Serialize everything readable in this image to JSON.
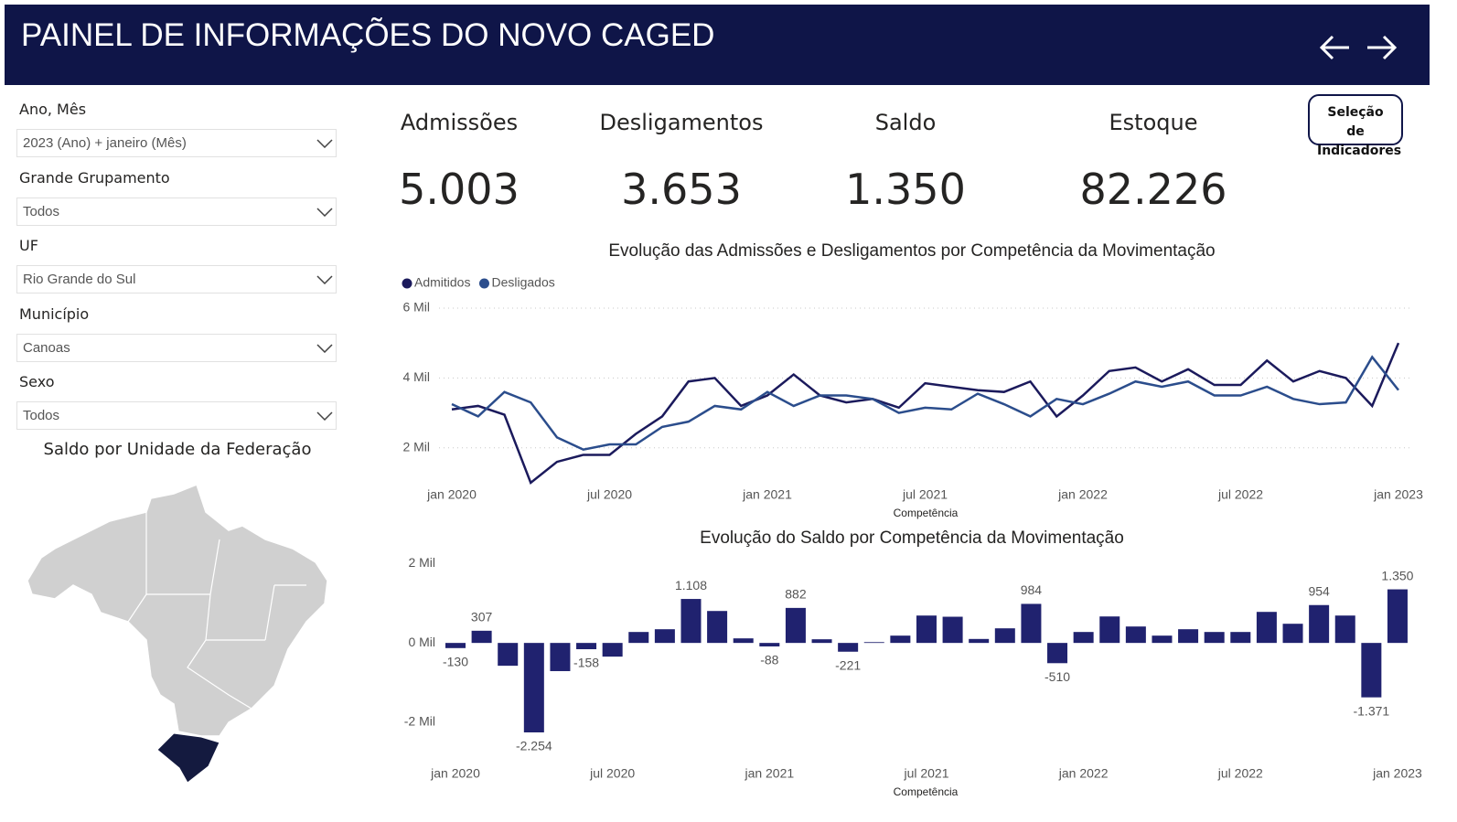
{
  "header": {
    "title": "PAINEL DE INFORMAÇÕES DO NOVO CAGED"
  },
  "filters": [
    {
      "label": "Ano, Mês",
      "value": "2023 (Ano) + janeiro (Mês)"
    },
    {
      "label": "Grande Grupamento",
      "value": "Todos"
    },
    {
      "label": "UF",
      "value": "Rio Grande do Sul"
    },
    {
      "label": "Município",
      "value": "Canoas"
    },
    {
      "label": "Sexo",
      "value": "Todos"
    }
  ],
  "button": "Seleção de Indicadores",
  "kpis": [
    {
      "label": "Admissões",
      "value": "5.003"
    },
    {
      "label": "Desligamentos",
      "value": "3.653"
    },
    {
      "label": "Saldo",
      "value": "1.350"
    },
    {
      "label": "Estoque",
      "value": "82.226"
    }
  ],
  "map": {
    "title": "Saldo por Unidade da Federação"
  },
  "chart_data": [
    {
      "type": "line",
      "title": "Evolução das Admissões e Desligamentos por Competência da Movimentação",
      "x_label": "Competência",
      "categories": [
        "jan 2020",
        null,
        null,
        null,
        null,
        null,
        "jul 2020",
        null,
        null,
        null,
        null,
        null,
        "jan 2021",
        null,
        null,
        null,
        null,
        null,
        "jul 2021",
        null,
        null,
        null,
        null,
        null,
        "jan 2022",
        null,
        null,
        null,
        null,
        null,
        "jul 2022",
        null,
        null,
        null,
        null,
        null,
        "jan 2023"
      ],
      "series": [
        {
          "name": "Admitidos",
          "color": "#1b1a5c",
          "values": [
            3100,
            3200,
            2950,
            1000,
            1600,
            1800,
            1800,
            2400,
            2900,
            3900,
            4000,
            3200,
            3500,
            4100,
            3500,
            3300,
            3400,
            3150,
            3850,
            3750,
            3650,
            3600,
            3900,
            2900,
            3500,
            4200,
            4300,
            3900,
            4250,
            3800,
            3800,
            4500,
            3900,
            4200,
            4000,
            3200,
            5003
          ]
        },
        {
          "name": "Desligados",
          "color": "#2b4d8c",
          "values": [
            3250,
            2900,
            3600,
            3300,
            2300,
            1950,
            2100,
            2100,
            2600,
            2750,
            3200,
            3100,
            3600,
            3200,
            3500,
            3500,
            3400,
            3000,
            3150,
            3100,
            3550,
            3250,
            2900,
            3400,
            3250,
            3550,
            3900,
            3750,
            3900,
            3500,
            3500,
            3750,
            3400,
            3250,
            3300,
            4600,
            3653
          ]
        }
      ],
      "ylim": [
        1000,
        6000
      ],
      "yticks": [
        {
          "value": 2000,
          "label": "2 Mil"
        },
        {
          "value": 4000,
          "label": "4 Mil"
        },
        {
          "value": 6000,
          "label": "6 Mil"
        }
      ],
      "grid": true,
      "legend": "top-left"
    },
    {
      "type": "bar",
      "title": "Evolução do Saldo por Competência da Movimentação",
      "x_label": "Competência",
      "categories": [
        "jan 2020",
        null,
        null,
        null,
        null,
        null,
        "jul 2020",
        null,
        null,
        null,
        null,
        null,
        "jan 2021",
        null,
        null,
        null,
        null,
        null,
        "jul 2021",
        null,
        null,
        null,
        null,
        null,
        "jan 2022",
        null,
        null,
        null,
        null,
        null,
        "jul 2022",
        null,
        null,
        null,
        null,
        null,
        "jan 2023"
      ],
      "values": [
        -130,
        307,
        -575,
        -2254,
        -710,
        -158,
        -345,
        276,
        345,
        1108,
        805,
        115,
        -88,
        882,
        92,
        -221,
        20,
        184,
        690,
        660,
        100,
        368,
        984,
        -510,
        276,
        667,
        414,
        184,
        345,
        276,
        276,
        782,
        483,
        954,
        690,
        -1371,
        1350
      ],
      "value_labels": [
        "-130",
        "307",
        null,
        "-2.254",
        null,
        "-158",
        null,
        null,
        null,
        "1.108",
        null,
        null,
        "-88",
        "882",
        null,
        "-221",
        null,
        null,
        null,
        null,
        null,
        null,
        "984",
        "-510",
        null,
        null,
        null,
        null,
        null,
        null,
        null,
        null,
        null,
        "954",
        null,
        "-1.371",
        "1.350"
      ],
      "color": "#20226f",
      "ylim": [
        -2300,
        2100
      ],
      "yticks": [
        {
          "value": -2000,
          "label": "-2 Mil"
        },
        {
          "value": 0,
          "label": "0 Mil"
        },
        {
          "value": 2000,
          "label": "2 Mil"
        }
      ],
      "grid": false
    }
  ]
}
